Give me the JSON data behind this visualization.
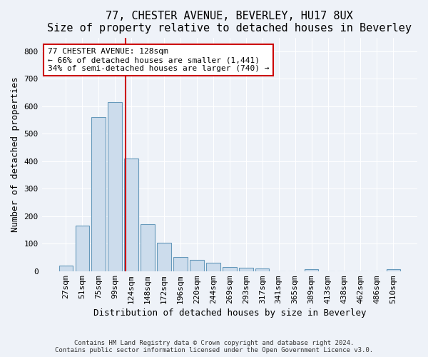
{
  "title1": "77, CHESTER AVENUE, BEVERLEY, HU17 8UX",
  "title2": "Size of property relative to detached houses in Beverley",
  "xlabel": "Distribution of detached houses by size in Beverley",
  "ylabel": "Number of detached properties",
  "footer1": "Contains HM Land Registry data © Crown copyright and database right 2024.",
  "footer2": "Contains public sector information licensed under the Open Government Licence v3.0.",
  "bar_labels": [
    "27sqm",
    "51sqm",
    "75sqm",
    "99sqm",
    "124sqm",
    "148sqm",
    "172sqm",
    "196sqm",
    "220sqm",
    "244sqm",
    "269sqm",
    "293sqm",
    "317sqm",
    "341sqm",
    "365sqm",
    "389sqm",
    "413sqm",
    "438sqm",
    "462sqm",
    "486sqm",
    "510sqm"
  ],
  "bar_values": [
    20,
    165,
    560,
    615,
    410,
    170,
    103,
    52,
    40,
    31,
    14,
    13,
    10,
    0,
    0,
    8,
    0,
    0,
    0,
    0,
    8
  ],
  "bar_color": "#ccdcec",
  "bar_edge_color": "#6699bb",
  "vline_x_index": 4,
  "vline_color": "#cc0000",
  "annotation_line1": "77 CHESTER AVENUE: 128sqm",
  "annotation_line2": "← 66% of detached houses are smaller (1,441)",
  "annotation_line3": "34% of semi-detached houses are larger (740) →",
  "annotation_box_color": "#ffffff",
  "annotation_box_edge": "#cc0000",
  "ylim": [
    0,
    850
  ],
  "yticks": [
    0,
    100,
    200,
    300,
    400,
    500,
    600,
    700,
    800
  ],
  "background_color": "#eef2f8",
  "grid_color": "#ffffff",
  "title1_fontsize": 11,
  "title2_fontsize": 9.5,
  "ylabel_fontsize": 9,
  "xlabel_fontsize": 9,
  "tick_fontsize": 8,
  "footer_fontsize": 6.5,
  "annotation_fontsize": 8
}
